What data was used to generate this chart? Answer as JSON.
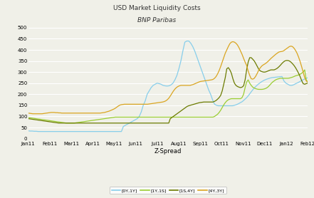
{
  "title1": "USD Market Liquidity Costs",
  "title2": "BNP Paribas",
  "xlabel": "Z-Spread",
  "ylim": [
    0,
    500
  ],
  "yticks": [
    0,
    50,
    100,
    150,
    200,
    250,
    300,
    350,
    400,
    450,
    500
  ],
  "xtick_labels": [
    "Jan11",
    "Feb11",
    "Mar11",
    "Apr11",
    "May11",
    "Jun11",
    "Jul11",
    "Aug11",
    "Sep11",
    "Oct11",
    "Nov11",
    "Dec11",
    "Jan12",
    "Feb12"
  ],
  "colors": {
    "line1": "#87CEEB",
    "line2": "#9ACD32",
    "line3": "#6B7B00",
    "line4": "#DAA520"
  },
  "legend_labels": [
    "[0Y,1Y]",
    "[1Y,1S]",
    "[1S,4Y]",
    "[4Y,3Y]"
  ],
  "background": "#f0f0e8",
  "line1_y": [
    35,
    34,
    34,
    33,
    33,
    32,
    32,
    32,
    32,
    32,
    32,
    32,
    32,
    32,
    32,
    32,
    32,
    32,
    32,
    32,
    32,
    32,
    32,
    32,
    32,
    32,
    32,
    32,
    32,
    32,
    32,
    32,
    32,
    32,
    32,
    32,
    32,
    32,
    32,
    32,
    32,
    32,
    32,
    32,
    32,
    32,
    32,
    32,
    55,
    60,
    65,
    70,
    75,
    80,
    85,
    90,
    100,
    120,
    150,
    170,
    200,
    215,
    230,
    240,
    245,
    250,
    248,
    245,
    240,
    238,
    237,
    238,
    242,
    250,
    265,
    285,
    315,
    350,
    395,
    435,
    440,
    440,
    430,
    415,
    395,
    370,
    345,
    320,
    295,
    270,
    245,
    220,
    200,
    175,
    155,
    150,
    148,
    148,
    148,
    148,
    148,
    148,
    148,
    148,
    150,
    153,
    157,
    162,
    167,
    175,
    183,
    193,
    205,
    217,
    228,
    237,
    245,
    252,
    258,
    263,
    267,
    270,
    273,
    275,
    276,
    277,
    278,
    279,
    280,
    260,
    250,
    245,
    240,
    240,
    243,
    248,
    252,
    257,
    262,
    267,
    270,
    275
  ],
  "line2_y": [
    95,
    94,
    93,
    92,
    91,
    90,
    89,
    88,
    87,
    86,
    85,
    84,
    83,
    82,
    81,
    80,
    79,
    78,
    77,
    76,
    75,
    74,
    73,
    72,
    71,
    70,
    70,
    70,
    70,
    70,
    70,
    71,
    72,
    73,
    74,
    75,
    76,
    77,
    78,
    79,
    80,
    81,
    82,
    83,
    84,
    85,
    86,
    87,
    88,
    89,
    90,
    91,
    92,
    93,
    94,
    95,
    96,
    97,
    97,
    97,
    97,
    97,
    97,
    97,
    97,
    97,
    97,
    97,
    97,
    97,
    97,
    97,
    97,
    97,
    97,
    97,
    97,
    97,
    97,
    97,
    97,
    97,
    97,
    97,
    97,
    97,
    97,
    97,
    97,
    97,
    97,
    97,
    97,
    97,
    97,
    97,
    97,
    97,
    97,
    97,
    97,
    97,
    97,
    97,
    97,
    97,
    97,
    97,
    97,
    97,
    97,
    97,
    97,
    97,
    97,
    97,
    97,
    97,
    97,
    97,
    97,
    97,
    100,
    105,
    110,
    118,
    128,
    140,
    152,
    162,
    170,
    175,
    178,
    180,
    180,
    180,
    180,
    180,
    180,
    180,
    185,
    200,
    230,
    255,
    265,
    250,
    240,
    232,
    228,
    225,
    223,
    222,
    222,
    222,
    223,
    225,
    228,
    233,
    240,
    248,
    255,
    260,
    265,
    268,
    270,
    272,
    272,
    272,
    272,
    272,
    272,
    273,
    275,
    277,
    280,
    283,
    285,
    287,
    290,
    295,
    300,
    310,
    265,
    255
  ],
  "line3_y": [
    90,
    89,
    88,
    87,
    86,
    85,
    84,
    83,
    82,
    81,
    80,
    79,
    78,
    77,
    76,
    75,
    74,
    73,
    72,
    71,
    70,
    70,
    70,
    70,
    70,
    70,
    70,
    70,
    70,
    70,
    70,
    70,
    70,
    70,
    70,
    70,
    70,
    70,
    70,
    70,
    70,
    70,
    70,
    70,
    70,
    70,
    70,
    70,
    70,
    70,
    70,
    70,
    70,
    70,
    70,
    70,
    70,
    70,
    70,
    70,
    70,
    70,
    70,
    70,
    70,
    70,
    70,
    70,
    70,
    70,
    70,
    70,
    70,
    70,
    70,
    70,
    70,
    70,
    70,
    70,
    70,
    70,
    70,
    70,
    70,
    70,
    70,
    70,
    70,
    70,
    70,
    70,
    70,
    90,
    95,
    100,
    105,
    110,
    115,
    120,
    125,
    130,
    135,
    140,
    145,
    148,
    150,
    152,
    154,
    156,
    158,
    160,
    162,
    163,
    164,
    165,
    165,
    165,
    165,
    165,
    165,
    165,
    168,
    172,
    178,
    185,
    195,
    215,
    245,
    275,
    315,
    320,
    310,
    295,
    270,
    250,
    240,
    235,
    232,
    230,
    232,
    238,
    265,
    310,
    345,
    365,
    365,
    358,
    350,
    338,
    325,
    312,
    305,
    302,
    300,
    300,
    302,
    305,
    308,
    310,
    310,
    310,
    313,
    317,
    323,
    330,
    338,
    345,
    350,
    352,
    352,
    350,
    345,
    338,
    330,
    320,
    308,
    295,
    280,
    262,
    248,
    245,
    248,
    250
  ],
  "line4_y": [
    115,
    114,
    113,
    112,
    112,
    112,
    112,
    112,
    112,
    112,
    113,
    114,
    115,
    116,
    117,
    118,
    118,
    118,
    117,
    117,
    116,
    116,
    115,
    115,
    115,
    115,
    115,
    115,
    115,
    115,
    115,
    115,
    115,
    115,
    115,
    115,
    115,
    115,
    115,
    115,
    115,
    115,
    115,
    115,
    115,
    115,
    115,
    115,
    116,
    117,
    118,
    120,
    122,
    124,
    127,
    130,
    133,
    137,
    142,
    147,
    151,
    153,
    154,
    155,
    155,
    155,
    155,
    155,
    155,
    155,
    155,
    155,
    155,
    155,
    155,
    155,
    155,
    155,
    155,
    156,
    157,
    158,
    159,
    160,
    161,
    162,
    163,
    164,
    165,
    167,
    170,
    175,
    182,
    192,
    203,
    214,
    223,
    230,
    235,
    238,
    240,
    240,
    240,
    240,
    240,
    240,
    240,
    242,
    244,
    247,
    250,
    253,
    256,
    258,
    259,
    260,
    261,
    262,
    263,
    264,
    265,
    267,
    272,
    280,
    292,
    307,
    325,
    345,
    365,
    385,
    400,
    415,
    428,
    435,
    437,
    435,
    430,
    422,
    410,
    395,
    380,
    362,
    345,
    330,
    305,
    285,
    270,
    268,
    272,
    282,
    295,
    310,
    320,
    328,
    333,
    337,
    342,
    348,
    355,
    362,
    368,
    374,
    380,
    385,
    390,
    392,
    393,
    395,
    400,
    405,
    410,
    415,
    417,
    415,
    408,
    398,
    385,
    368,
    348,
    325,
    300,
    275,
    260,
    255
  ]
}
